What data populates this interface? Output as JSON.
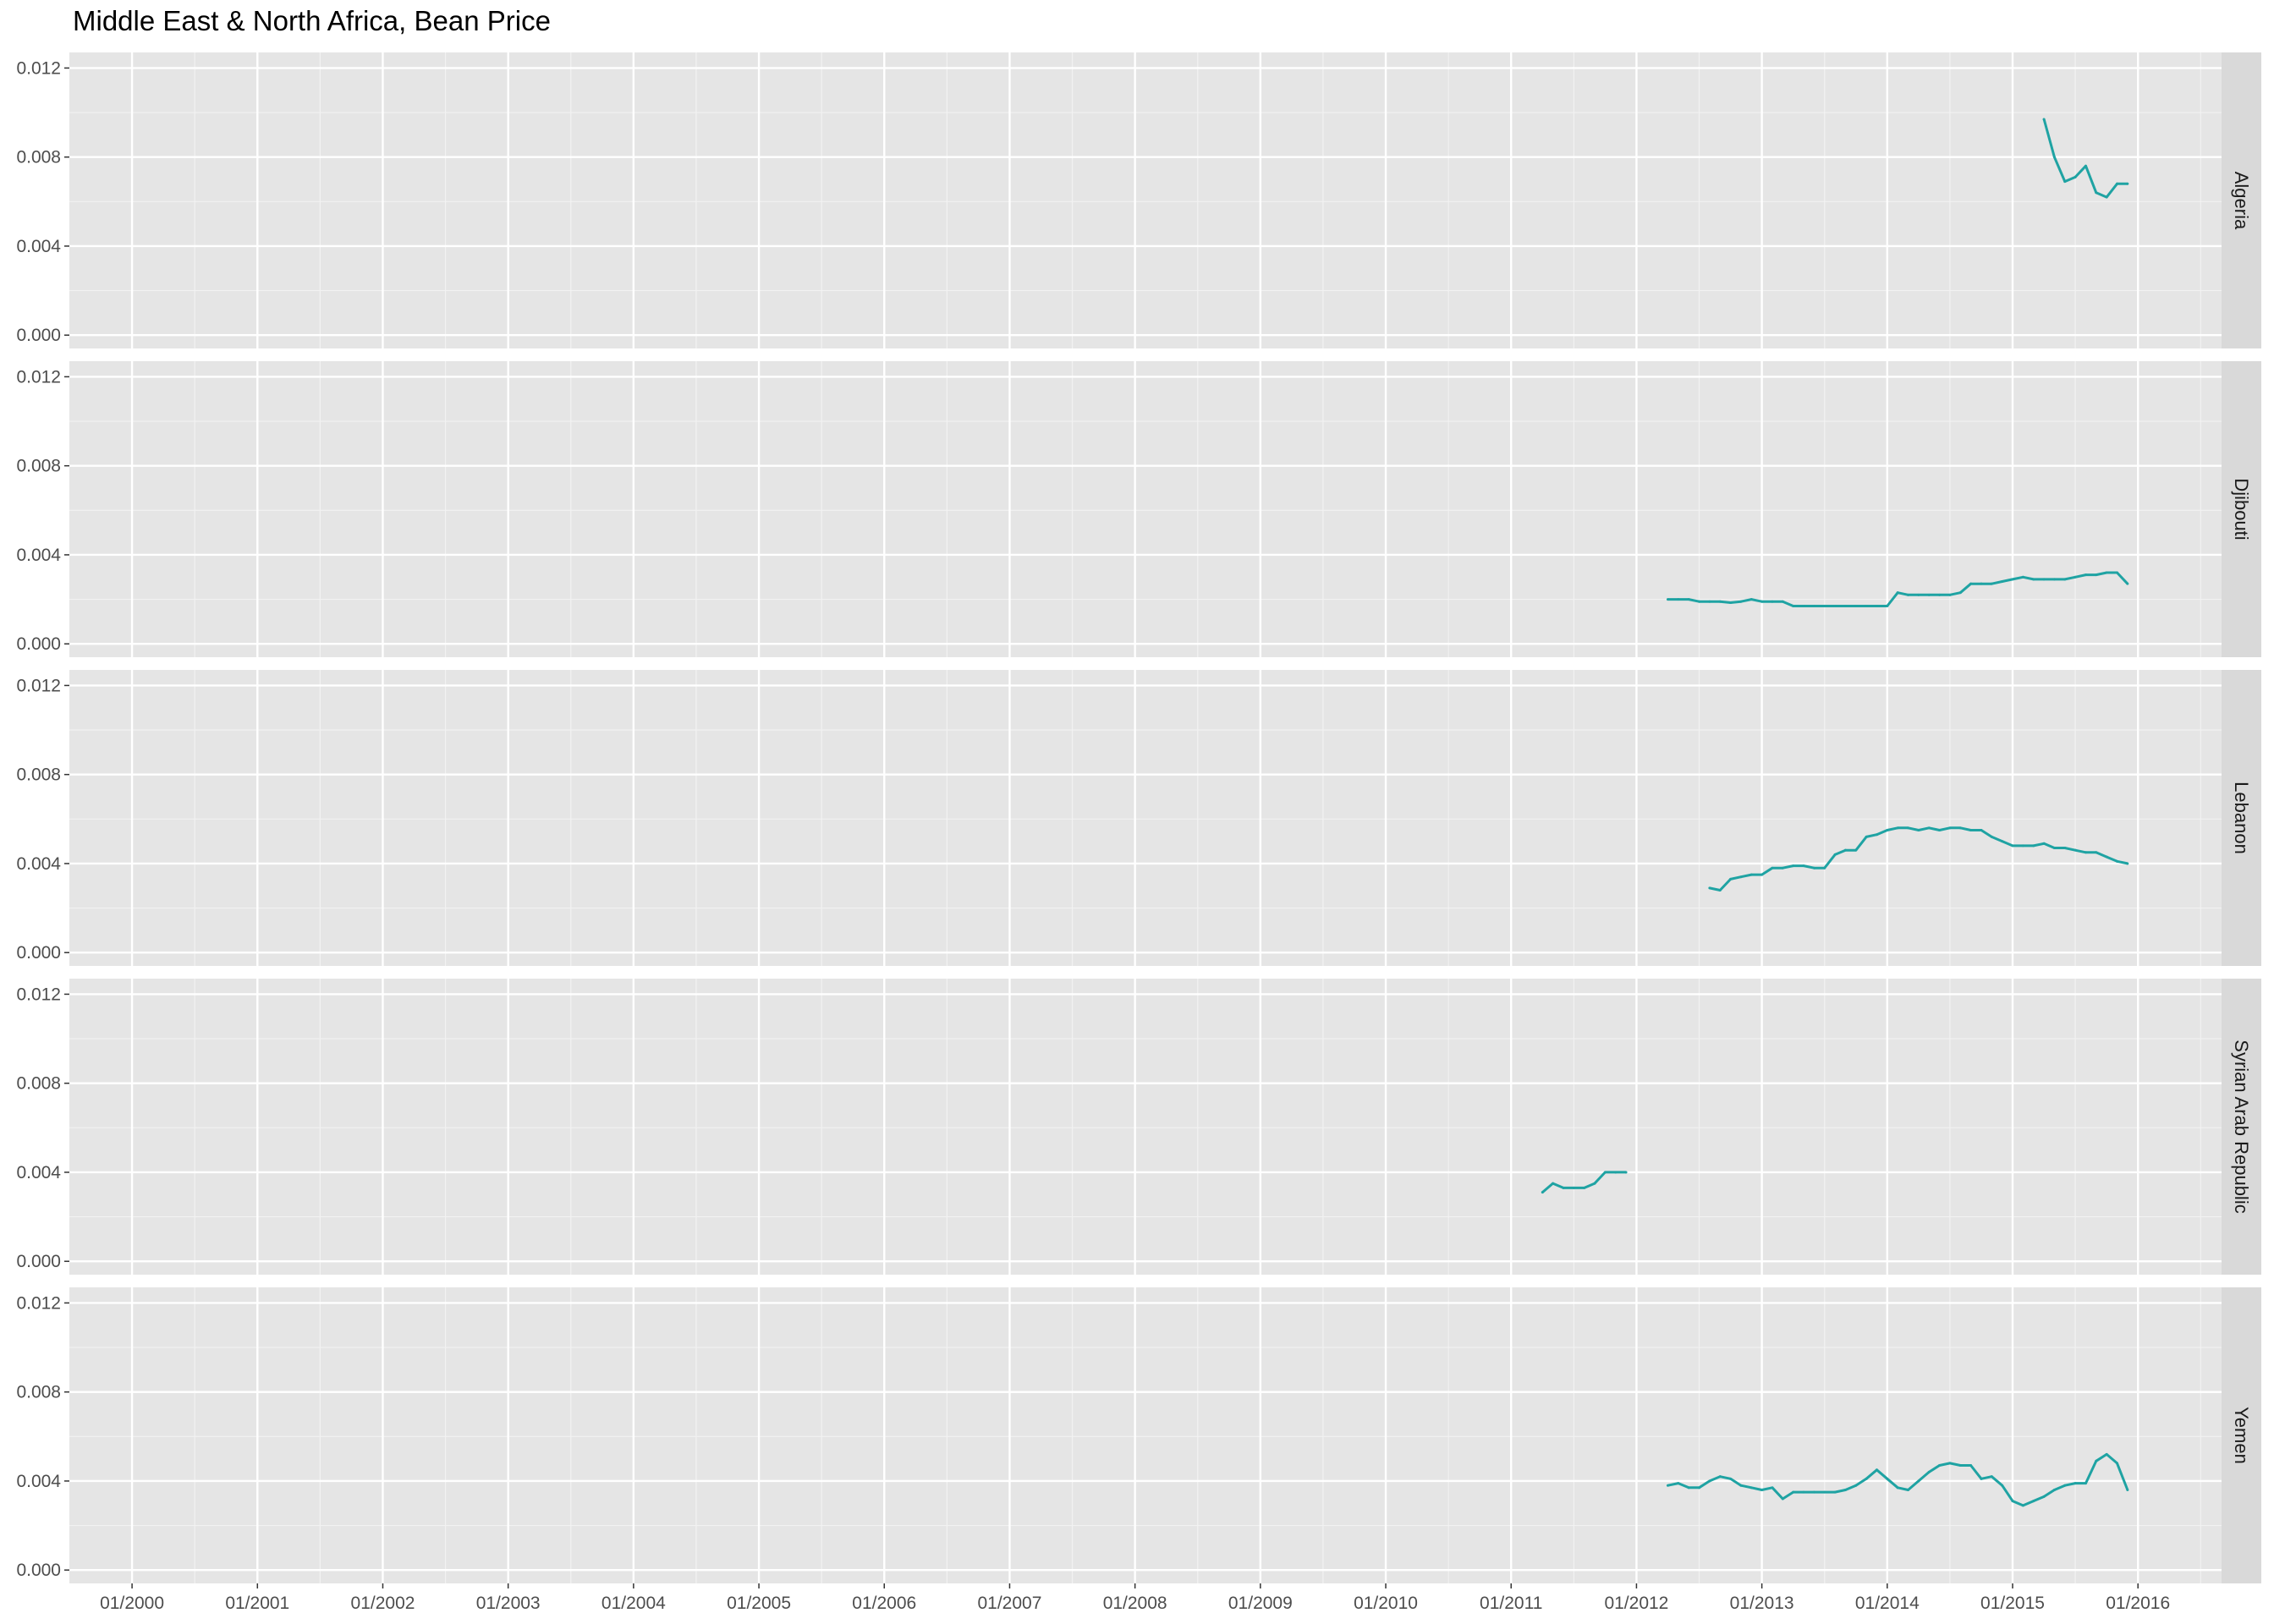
{
  "chart_data": {
    "type": "line",
    "title": "Middle East & North Africa, Bean Price",
    "xlabel": "",
    "ylabel": "",
    "x_ticks": [
      "01/2000",
      "01/2001",
      "01/2002",
      "01/2003",
      "01/2004",
      "01/2005",
      "01/2006",
      "01/2007",
      "01/2008",
      "01/2009",
      "01/2010",
      "01/2011",
      "01/2012",
      "01/2013",
      "01/2014",
      "01/2015",
      "01/2016"
    ],
    "y_ticks": [
      "0.000",
      "0.004",
      "0.008",
      "0.012"
    ],
    "xlim": [
      "1999-07",
      "2016-09"
    ],
    "ylim": [
      -0.0006,
      0.0127
    ],
    "facet_layout": "stacked rows, shared x and y axes",
    "line_color": "#1fa3a3",
    "panel_background": "#e5e5e5",
    "strip_background": "#d9d9d9",
    "grid": true,
    "panels": [
      {
        "label": "Algeria",
        "points": [
          [
            "2015-04",
            0.0097
          ],
          [
            "2015-05",
            0.008
          ],
          [
            "2015-06",
            0.0069
          ],
          [
            "2015-07",
            0.0071
          ],
          [
            "2015-08",
            0.0076
          ],
          [
            "2015-09",
            0.0064
          ],
          [
            "2015-10",
            0.0062
          ],
          [
            "2015-11",
            0.0068
          ],
          [
            "2015-12",
            0.0068
          ]
        ]
      },
      {
        "label": "Djibouti",
        "points": [
          [
            "2012-04",
            0.002
          ],
          [
            "2012-05",
            0.002
          ],
          [
            "2012-06",
            0.002
          ],
          [
            "2012-07",
            0.0019
          ],
          [
            "2012-08",
            0.0019
          ],
          [
            "2012-09",
            0.0019
          ],
          [
            "2012-10",
            0.00185
          ],
          [
            "2012-11",
            0.0019
          ],
          [
            "2012-12",
            0.002
          ],
          [
            "2013-01",
            0.0019
          ],
          [
            "2013-02",
            0.0019
          ],
          [
            "2013-03",
            0.0019
          ],
          [
            "2013-04",
            0.0017
          ],
          [
            "2013-05",
            0.0017
          ],
          [
            "2013-06",
            0.0017
          ],
          [
            "2013-07",
            0.0017
          ],
          [
            "2013-08",
            0.0017
          ],
          [
            "2013-09",
            0.0017
          ],
          [
            "2013-10",
            0.0017
          ],
          [
            "2013-11",
            0.0017
          ],
          [
            "2013-12",
            0.0017
          ],
          [
            "2014-01",
            0.0017
          ],
          [
            "2014-02",
            0.0023
          ],
          [
            "2014-03",
            0.0022
          ],
          [
            "2014-04",
            0.0022
          ],
          [
            "2014-05",
            0.0022
          ],
          [
            "2014-06",
            0.0022
          ],
          [
            "2014-07",
            0.0022
          ],
          [
            "2014-08",
            0.0023
          ],
          [
            "2014-09",
            0.0027
          ],
          [
            "2014-10",
            0.0027
          ],
          [
            "2014-11",
            0.0027
          ],
          [
            "2014-12",
            0.0028
          ],
          [
            "2015-01",
            0.0029
          ],
          [
            "2015-02",
            0.003
          ],
          [
            "2015-03",
            0.0029
          ],
          [
            "2015-04",
            0.0029
          ],
          [
            "2015-05",
            0.0029
          ],
          [
            "2015-06",
            0.0029
          ],
          [
            "2015-07",
            0.003
          ],
          [
            "2015-08",
            0.0031
          ],
          [
            "2015-09",
            0.0031
          ],
          [
            "2015-10",
            0.0032
          ],
          [
            "2015-11",
            0.0032
          ],
          [
            "2015-12",
            0.0027
          ]
        ]
      },
      {
        "label": "Lebanon",
        "points": [
          [
            "2012-08",
            0.0029
          ],
          [
            "2012-09",
            0.0028
          ],
          [
            "2012-10",
            0.0033
          ],
          [
            "2012-11",
            0.0034
          ],
          [
            "2012-12",
            0.0035
          ],
          [
            "2013-01",
            0.0035
          ],
          [
            "2013-02",
            0.0038
          ],
          [
            "2013-03",
            0.0038
          ],
          [
            "2013-04",
            0.0039
          ],
          [
            "2013-05",
            0.0039
          ],
          [
            "2013-06",
            0.0038
          ],
          [
            "2013-07",
            0.0038
          ],
          [
            "2013-08",
            0.0044
          ],
          [
            "2013-09",
            0.0046
          ],
          [
            "2013-10",
            0.0046
          ],
          [
            "2013-11",
            0.0052
          ],
          [
            "2013-12",
            0.0053
          ],
          [
            "2014-01",
            0.0055
          ],
          [
            "2014-02",
            0.0056
          ],
          [
            "2014-03",
            0.0056
          ],
          [
            "2014-04",
            0.0055
          ],
          [
            "2014-05",
            0.0056
          ],
          [
            "2014-06",
            0.0055
          ],
          [
            "2014-07",
            0.0056
          ],
          [
            "2014-08",
            0.0056
          ],
          [
            "2014-09",
            0.0055
          ],
          [
            "2014-10",
            0.0055
          ],
          [
            "2014-11",
            0.0052
          ],
          [
            "2014-12",
            0.005
          ],
          [
            "2015-01",
            0.0048
          ],
          [
            "2015-02",
            0.0048
          ],
          [
            "2015-03",
            0.0048
          ],
          [
            "2015-04",
            0.0049
          ],
          [
            "2015-05",
            0.0047
          ],
          [
            "2015-06",
            0.0047
          ],
          [
            "2015-07",
            0.0046
          ],
          [
            "2015-08",
            0.0045
          ],
          [
            "2015-09",
            0.0045
          ],
          [
            "2015-10",
            0.0043
          ],
          [
            "2015-11",
            0.0041
          ],
          [
            "2015-12",
            0.004
          ]
        ]
      },
      {
        "label": "Syrian Arab Republic",
        "points": [
          [
            "2011-04",
            0.0031
          ],
          [
            "2011-05",
            0.0035
          ],
          [
            "2011-06",
            0.0033
          ],
          [
            "2011-07",
            0.0033
          ],
          [
            "2011-08",
            0.0033
          ],
          [
            "2011-09",
            0.0035
          ],
          [
            "2011-10",
            0.004
          ],
          [
            "2011-11",
            0.004
          ],
          [
            "2011-12",
            0.004
          ]
        ]
      },
      {
        "label": "Yemen",
        "points": [
          [
            "2012-04",
            0.0038
          ],
          [
            "2012-05",
            0.0039
          ],
          [
            "2012-06",
            0.0037
          ],
          [
            "2012-07",
            0.0037
          ],
          [
            "2012-08",
            0.004
          ],
          [
            "2012-09",
            0.0042
          ],
          [
            "2012-10",
            0.0041
          ],
          [
            "2012-11",
            0.0038
          ],
          [
            "2012-12",
            0.0037
          ],
          [
            "2013-01",
            0.0036
          ],
          [
            "2013-02",
            0.0037
          ],
          [
            "2013-03",
            0.0032
          ],
          [
            "2013-04",
            0.0035
          ],
          [
            "2013-05",
            0.0035
          ],
          [
            "2013-06",
            0.0035
          ],
          [
            "2013-07",
            0.0035
          ],
          [
            "2013-08",
            0.0035
          ],
          [
            "2013-09",
            0.0036
          ],
          [
            "2013-10",
            0.0038
          ],
          [
            "2013-11",
            0.0041
          ],
          [
            "2013-12",
            0.0045
          ],
          [
            "2014-01",
            0.0041
          ],
          [
            "2014-02",
            0.0037
          ],
          [
            "2014-03",
            0.0036
          ],
          [
            "2014-04",
            0.004
          ],
          [
            "2014-05",
            0.0044
          ],
          [
            "2014-06",
            0.0047
          ],
          [
            "2014-07",
            0.0048
          ],
          [
            "2014-08",
            0.0047
          ],
          [
            "2014-09",
            0.0047
          ],
          [
            "2014-10",
            0.0041
          ],
          [
            "2014-11",
            0.0042
          ],
          [
            "2014-12",
            0.0038
          ],
          [
            "2015-01",
            0.0031
          ],
          [
            "2015-02",
            0.0029
          ],
          [
            "2015-03",
            0.0031
          ],
          [
            "2015-04",
            0.0033
          ],
          [
            "2015-05",
            0.0036
          ],
          [
            "2015-06",
            0.0038
          ],
          [
            "2015-07",
            0.0039
          ],
          [
            "2015-08",
            0.0039
          ],
          [
            "2015-09",
            0.0049
          ],
          [
            "2015-10",
            0.0052
          ],
          [
            "2015-11",
            0.0048
          ],
          [
            "2015-12",
            0.0036
          ]
        ]
      }
    ]
  }
}
